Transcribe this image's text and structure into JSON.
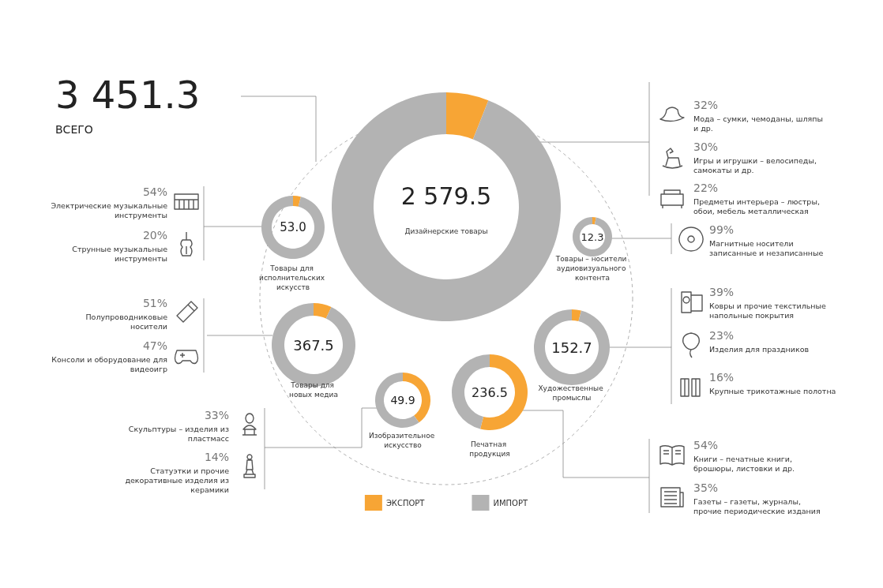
{
  "chart_data": [
    {
      "type": "other",
      "title": "3 451.3",
      "subtitle": "ВСЕГО"
    },
    {
      "type": "donut",
      "title": "Дизайнерские товары",
      "subtitle": "2 579.5",
      "categories": [
        "ЭКСПОРТ",
        "ИМПОРТ"
      ],
      "values": [
        6,
        94
      ],
      "colors": [
        "#f7a535",
        "#b3b3b3"
      ],
      "legend": "bottom",
      "annotations": [
        "32%",
        "Мода – сумки, чемоданы, шляпы и др.",
        "30%",
        "Игры и игрушки – велосипеды, самокаты и др.",
        "22%",
        "Предметы интерьера – люстры, обои, мебель металлическая"
      ]
    },
    {
      "type": "donut",
      "title": "Товары для исполнительских искусств",
      "subtitle": "53.0",
      "categories": [
        null,
        null
      ],
      "values": [
        4,
        96
      ],
      "colors": [
        "#f7a535",
        "#b3b3b3"
      ],
      "annotations": [
        "54%",
        "Электрические музыкальные инструменты",
        "20%",
        "Струнные музыкальные инструменты"
      ]
    },
    {
      "type": "donut",
      "title": "Товары – носители аудиовизуального контента",
      "subtitle": "12.3",
      "categories": [
        null,
        null
      ],
      "values": [
        3,
        97
      ],
      "colors": [
        "#f7a535",
        "#b3b3b3"
      ],
      "annotations": [
        "99%",
        "Магнитные носители записанные и незаписанные"
      ]
    },
    {
      "type": "donut",
      "title": "Товары для новых медиа",
      "subtitle": "367.5",
      "categories": [
        null,
        null
      ],
      "values": [
        7,
        93
      ],
      "colors": [
        "#f7a535",
        "#b3b3b3"
      ],
      "annotations": [
        "51%",
        "Полупроводниковые носители",
        "47%",
        "Консоли и оборудование для видеоигр"
      ]
    },
    {
      "type": "donut",
      "title": "Художественные промыслы",
      "subtitle": "152.7",
      "categories": [
        null,
        null
      ],
      "values": [
        4,
        96
      ],
      "colors": [
        "#f7a535",
        "#b3b3b3"
      ],
      "annotations": [
        "39%",
        "Ковры и прочие текстильные напольные покрытия",
        "23%",
        "Изделия для праздников",
        "16%",
        "Крупные трикотажные полотна"
      ]
    },
    {
      "type": "donut",
      "title": "Изобразительное искусство",
      "subtitle": "49.9",
      "categories": [
        null,
        null
      ],
      "values": [
        40,
        60
      ],
      "colors": [
        "#f7a535",
        "#b3b3b3"
      ],
      "annotations": [
        "33%",
        "Скульптуры – изделия из пластмасс",
        "14%",
        "Статуэтки и прочие декоративные изделия из керамики"
      ]
    },
    {
      "type": "donut",
      "title": "Печатная продукция",
      "subtitle": "236.5",
      "categories": [
        null,
        null
      ],
      "values": [
        54,
        46
      ],
      "colors": [
        "#f7a535",
        "#b3b3b3"
      ],
      "annotations": [
        "54%",
        "Книги – печатные книги, брошюры, листовки и др.",
        "35%",
        "Газеты – газеты, журналы, прочие периодические издания"
      ]
    }
  ]
}
